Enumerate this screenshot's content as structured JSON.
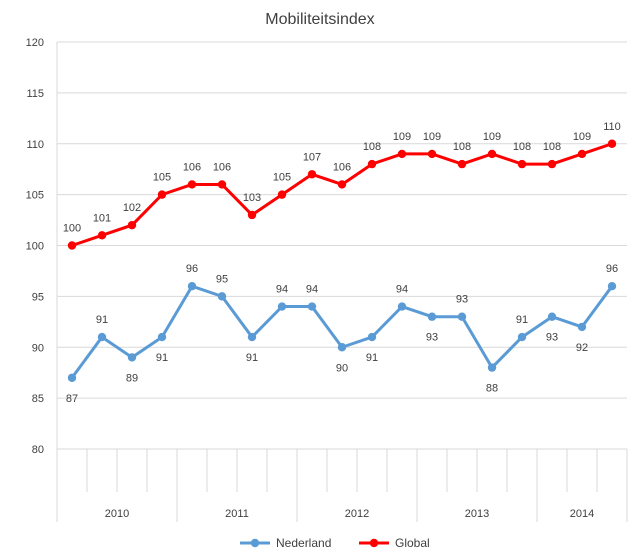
{
  "chart_data": {
    "type": "line",
    "title": "Mobiliteitsindex",
    "xlabel": "",
    "ylabel": "",
    "ylim": [
      80,
      120
    ],
    "yticks": [
      80,
      85,
      90,
      95,
      100,
      105,
      110,
      115,
      120
    ],
    "grid": "horizontal",
    "legend_position": "bottom",
    "groups": [
      {
        "label": "2010",
        "count": 4
      },
      {
        "label": "2011",
        "count": 4
      },
      {
        "label": "2012",
        "count": 4
      },
      {
        "label": "2013",
        "count": 4
      },
      {
        "label": "2014",
        "count": 3
      }
    ],
    "series": [
      {
        "name": "Nederland",
        "color": "#5B9BD5",
        "values": [
          87,
          91,
          89,
          91,
          96,
          95,
          91,
          94,
          94,
          90,
          91,
          94,
          93,
          93,
          88,
          91,
          93,
          92,
          96
        ],
        "label_positions": [
          "below",
          "above",
          "below",
          "below",
          "above",
          "above",
          "below",
          "above",
          "above",
          "below",
          "below",
          "above",
          "below",
          "above",
          "below",
          "above",
          "below",
          "below",
          "above"
        ]
      },
      {
        "name": "Global",
        "color": "#FF0000",
        "values": [
          100,
          101,
          102,
          105,
          106,
          106,
          103,
          105,
          107,
          106,
          108,
          109,
          109,
          108,
          109,
          108,
          108,
          109,
          110
        ],
        "label_positions": [
          "above",
          "above",
          "above",
          "above",
          "above",
          "above",
          "above",
          "above",
          "above",
          "above",
          "above",
          "above",
          "above",
          "above",
          "above",
          "above",
          "above",
          "above",
          "above"
        ]
      }
    ]
  }
}
